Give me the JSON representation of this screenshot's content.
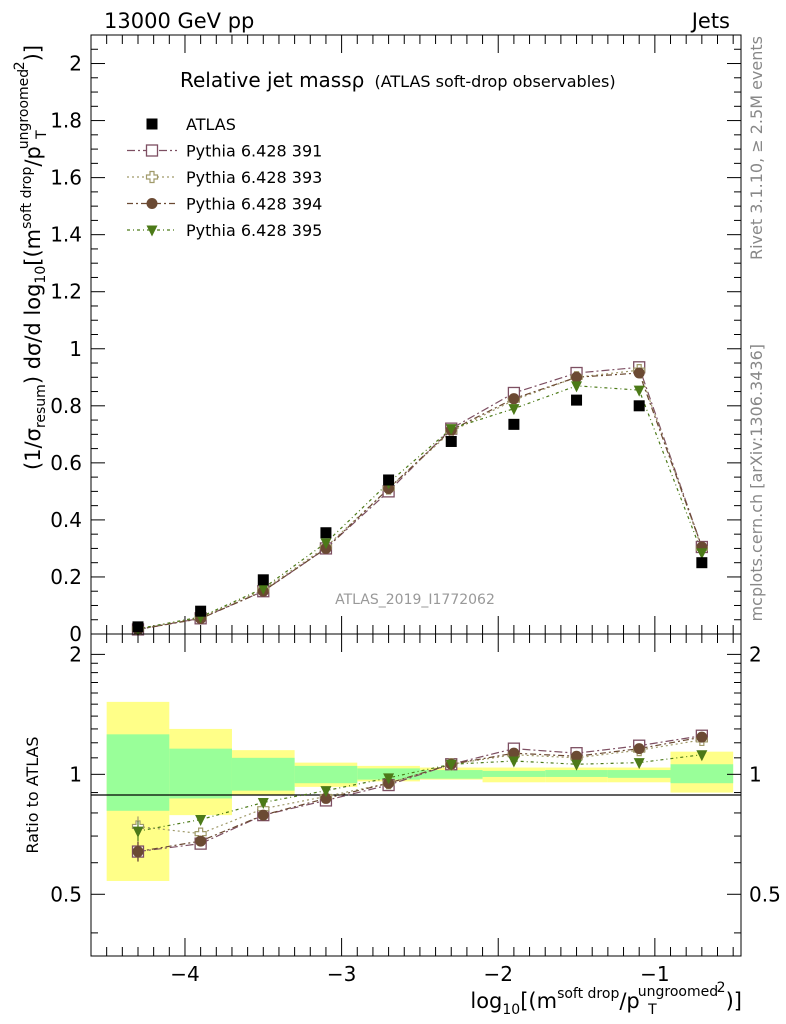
{
  "header": {
    "left": "13000 GeV pp",
    "right": "Jets"
  },
  "side_labels": {
    "rivet": "Rivet 3.1.10, ≥ 2.5M events",
    "mcplots": "mcplots.cern.ch [arXiv:1306.3436]"
  },
  "plot_title": {
    "main": "Relative jet massρ",
    "sub": "(ATLAS soft-drop observables)"
  },
  "watermark": "ATLAS_2019_I1772062",
  "colors": {
    "data": "#000000",
    "p391": "#7d4f62",
    "p393": "#a09a6a",
    "p394": "#6b4a33",
    "p395": "#4c7a18",
    "band_inner": "#99ff99",
    "band_outer": "#ffff88"
  },
  "chart_data": [
    {
      "type": "scatter",
      "panel": "main",
      "ylabel": "(1/σresum) dσ/d log10[(msoft drop/pTungroomed)2]",
      "xlim": [
        -4.6,
        -0.45
      ],
      "ylim": [
        0,
        2.1
      ],
      "y_ticks": [
        "0",
        "0.2",
        "0.4",
        "0.6",
        "0.8",
        "1",
        "1.2",
        "1.4",
        "1.6",
        "1.8",
        "2"
      ],
      "legend_position": "top-left",
      "x": [
        -4.3,
        -3.9,
        -3.5,
        -3.1,
        -2.7,
        -2.3,
        -1.9,
        -1.5,
        -1.1,
        -0.7
      ],
      "series": [
        {
          "name": "ATLAS",
          "marker": "square-filled",
          "values": [
            0.025,
            0.08,
            0.19,
            0.355,
            0.54,
            0.675,
            0.735,
            0.82,
            0.8,
            0.25
          ]
        },
        {
          "name": "Pythia 6.428 391",
          "marker": "square-open",
          "values": [
            0.016,
            0.055,
            0.15,
            0.3,
            0.5,
            0.72,
            0.845,
            0.915,
            0.935,
            0.305
          ]
        },
        {
          "name": "Pythia 6.428 393",
          "marker": "cross-open",
          "values": [
            0.018,
            0.058,
            0.155,
            0.305,
            0.51,
            0.71,
            0.82,
            0.9,
            0.925,
            0.3
          ]
        },
        {
          "name": "Pythia 6.428 394",
          "marker": "circle-filled",
          "values": [
            0.016,
            0.054,
            0.15,
            0.3,
            0.51,
            0.715,
            0.825,
            0.9,
            0.915,
            0.305
          ]
        },
        {
          "name": "Pythia 6.428 395",
          "marker": "triangle-down-filled",
          "values": [
            0.018,
            0.06,
            0.16,
            0.32,
            0.53,
            0.72,
            0.79,
            0.87,
            0.855,
            0.285
          ]
        }
      ]
    },
    {
      "type": "scatter",
      "panel": "ratio",
      "ylabel": "Ratio to ATLAS",
      "xlabel": "log10[(msoft drop/pTungroomed)2]",
      "xlim": [
        -4.6,
        -0.45
      ],
      "ylim": [
        0.35,
        2.25
      ],
      "y_ticks": [
        "0.5",
        "1",
        "2"
      ],
      "x_ticks": [
        "−4",
        "−3",
        "−2",
        "−1"
      ],
      "x_edges": [
        -4.5,
        -4.1,
        -3.7,
        -3.3,
        -2.9,
        -2.5,
        -2.1,
        -1.7,
        -1.3,
        -0.9,
        -0.5
      ],
      "band_inner": [
        [
          0.81,
          1.26
        ],
        [
          0.87,
          1.16
        ],
        [
          0.91,
          1.1
        ],
        [
          0.95,
          1.05
        ],
        [
          0.97,
          1.035
        ],
        [
          0.975,
          1.025
        ],
        [
          0.985,
          1.02
        ],
        [
          0.985,
          1.025
        ],
        [
          0.98,
          1.025
        ],
        [
          0.95,
          1.06
        ]
      ],
      "band_outer": [
        [
          0.54,
          1.52
        ],
        [
          0.79,
          1.3
        ],
        [
          0.89,
          1.15
        ],
        [
          0.93,
          1.07
        ],
        [
          0.96,
          1.05
        ],
        [
          0.97,
          1.04
        ],
        [
          0.955,
          1.04
        ],
        [
          0.955,
          1.04
        ],
        [
          0.955,
          1.04
        ],
        [
          0.9,
          1.14
        ]
      ],
      "x": [
        -4.3,
        -3.9,
        -3.5,
        -3.1,
        -2.7,
        -2.3,
        -1.9,
        -1.5,
        -1.1,
        -0.7
      ],
      "series": [
        {
          "name": "Pythia 6.428 391",
          "values": [
            0.64,
            0.67,
            0.79,
            0.86,
            0.94,
            1.06,
            1.16,
            1.13,
            1.18,
            1.25
          ]
        },
        {
          "name": "Pythia 6.428 393",
          "values": [
            0.74,
            0.71,
            0.82,
            0.88,
            0.95,
            1.06,
            1.12,
            1.1,
            1.15,
            1.22
          ]
        },
        {
          "name": "Pythia 6.428 394",
          "values": [
            0.64,
            0.68,
            0.79,
            0.87,
            0.95,
            1.06,
            1.13,
            1.11,
            1.16,
            1.24
          ]
        },
        {
          "name": "Pythia 6.428 395",
          "values": [
            0.72,
            0.77,
            0.85,
            0.91,
            0.98,
            1.06,
            1.08,
            1.06,
            1.07,
            1.12
          ]
        }
      ]
    }
  ]
}
